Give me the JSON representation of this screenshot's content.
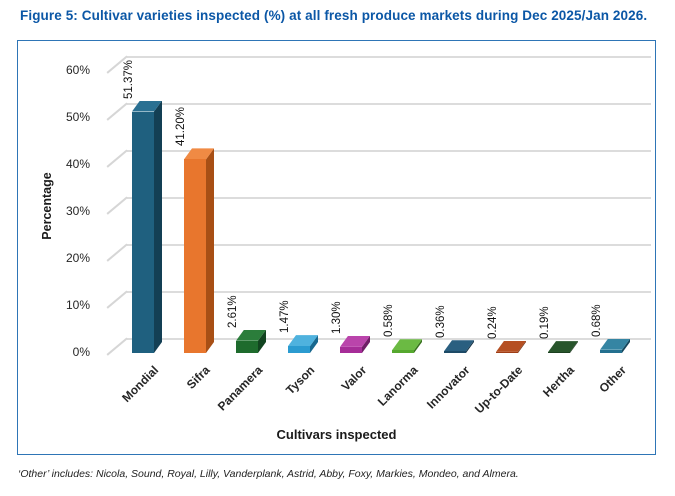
{
  "figure": {
    "title": "Figure 5: Cultivar varieties inspected (%) at all fresh produce markets during Dec 2025/Jan 2026.",
    "footnote": "‘Other’ includes: Nicola, Sound, Royal, Lilly, Vanderplank, Astrid, Abby, Foxy, Markies, Mondeo, and Almera."
  },
  "chart_data": {
    "type": "bar",
    "style": "3d-column",
    "title": "",
    "xlabel": "Cultivars inspected",
    "ylabel": "Percentage",
    "categories": [
      "Mondial",
      "Sifra",
      "Panamera",
      "Tyson",
      "Valor",
      "Lanorma",
      "Innovator",
      "Up-to-Date",
      "Hertha",
      "Other"
    ],
    "values": [
      51.37,
      41.2,
      2.61,
      1.47,
      1.3,
      0.58,
      0.36,
      0.24,
      0.19,
      0.68
    ],
    "value_labels": [
      "51.37%",
      "41.20%",
      "2.61%",
      "1.47%",
      "1.30%",
      "0.58%",
      "0.36%",
      "0.24%",
      "0.19%",
      "0.68%"
    ],
    "yticks": [
      "0%",
      "10%",
      "20%",
      "30%",
      "40%",
      "50%",
      "60%"
    ],
    "ylim": [
      0,
      60
    ],
    "grid": true,
    "legend": "none",
    "bar_colors": [
      {
        "front": "#1F607F",
        "top": "#2A7092",
        "side": "#133F54"
      },
      {
        "front": "#E8762D",
        "top": "#F08A44",
        "side": "#A84F15"
      },
      {
        "front": "#1E6B2D",
        "top": "#2B7D3B",
        "side": "#124420"
      },
      {
        "front": "#2B9BD0",
        "top": "#4FB2DE",
        "side": "#17688F"
      },
      {
        "front": "#A62D98",
        "top": "#BA44AB",
        "side": "#6F1D66"
      },
      {
        "front": "#56A82F",
        "top": "#6BBA43",
        "side": "#37711D"
      },
      {
        "front": "#1D4A66",
        "top": "#2A5F80",
        "side": "#112E40"
      },
      {
        "front": "#9E3D15",
        "top": "#B54F22",
        "side": "#66270C"
      },
      {
        "front": "#1C4020",
        "top": "#28552C",
        "side": "#102612"
      },
      {
        "front": "#23708F",
        "top": "#3585A3",
        "side": "#15465C"
      }
    ],
    "colors": {
      "title_blue": "#0B57A6",
      "border_blue": "#2E75B6",
      "gridline_gray": "#DCDCDC",
      "text": "#262626"
    }
  }
}
